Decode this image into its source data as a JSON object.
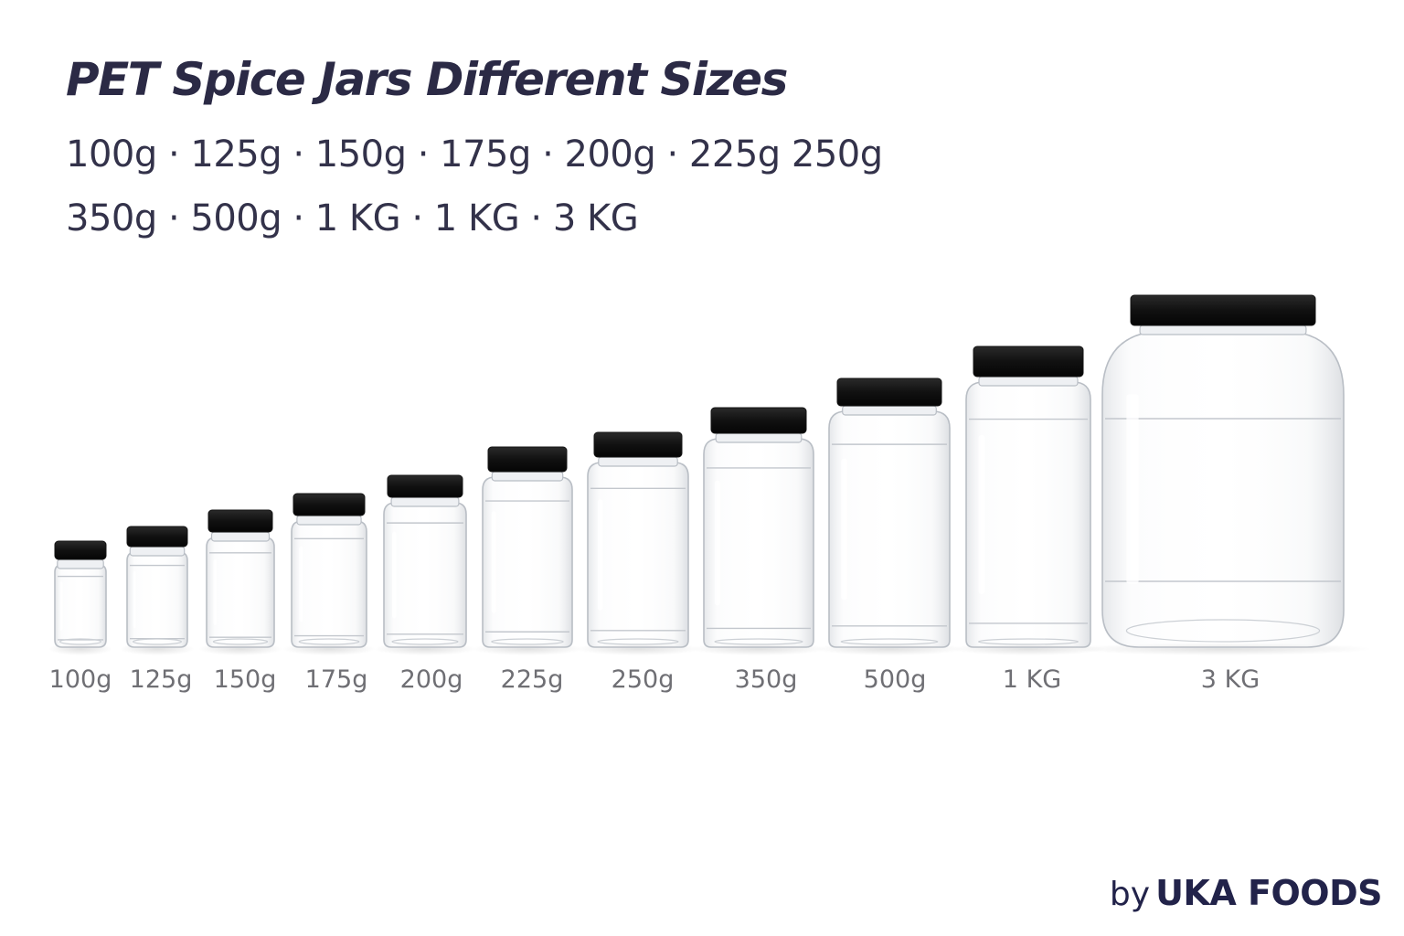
{
  "header": {
    "title": "PET Spice Jars Different Sizes",
    "sizes_line_1": "100g · 125g · 150g · 175g · 200g · 225g 250g",
    "sizes_line_2": "350g · 500g · 1 KG · 1 KG · 3 KG"
  },
  "jars": [
    {
      "label": "100g"
    },
    {
      "label": "125g"
    },
    {
      "label": "150g"
    },
    {
      "label": "175g"
    },
    {
      "label": "200g"
    },
    {
      "label": "225g"
    },
    {
      "label": "250g"
    },
    {
      "label": "350g"
    },
    {
      "label": "500g"
    },
    {
      "label": "1 KG"
    },
    {
      "label": "3 KG"
    }
  ],
  "brand": {
    "prefix": "by",
    "name": "UKA FOODS"
  },
  "colors": {
    "title": "#2b2a45",
    "lid": "#141414",
    "label": "#6f6f74",
    "brand": "#22234a"
  }
}
